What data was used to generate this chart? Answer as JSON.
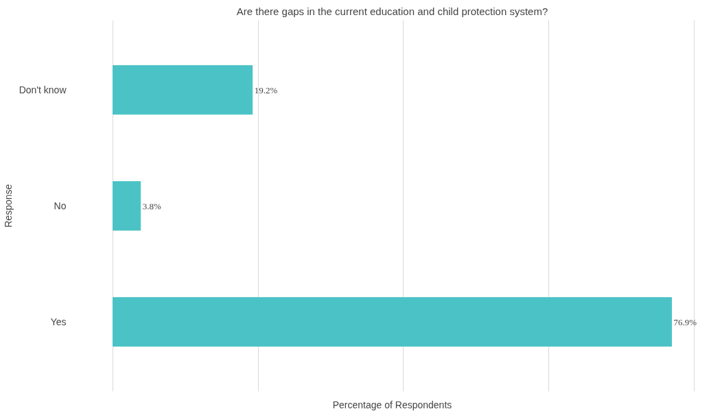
{
  "chart_data": {
    "type": "bar",
    "orientation": "horizontal",
    "title": "Are there gaps in the current education and child protection system?",
    "xlabel": "Percentage of Respondents",
    "ylabel": "Response",
    "categories": [
      "Don't know",
      "No",
      "Yes"
    ],
    "values": [
      19.2,
      3.8,
      76.9
    ],
    "value_labels": [
      "19.2%",
      "3.8%",
      "76.9%"
    ],
    "color": "#4bc3c6",
    "tick_labels": "y",
    "grid": "x"
  }
}
